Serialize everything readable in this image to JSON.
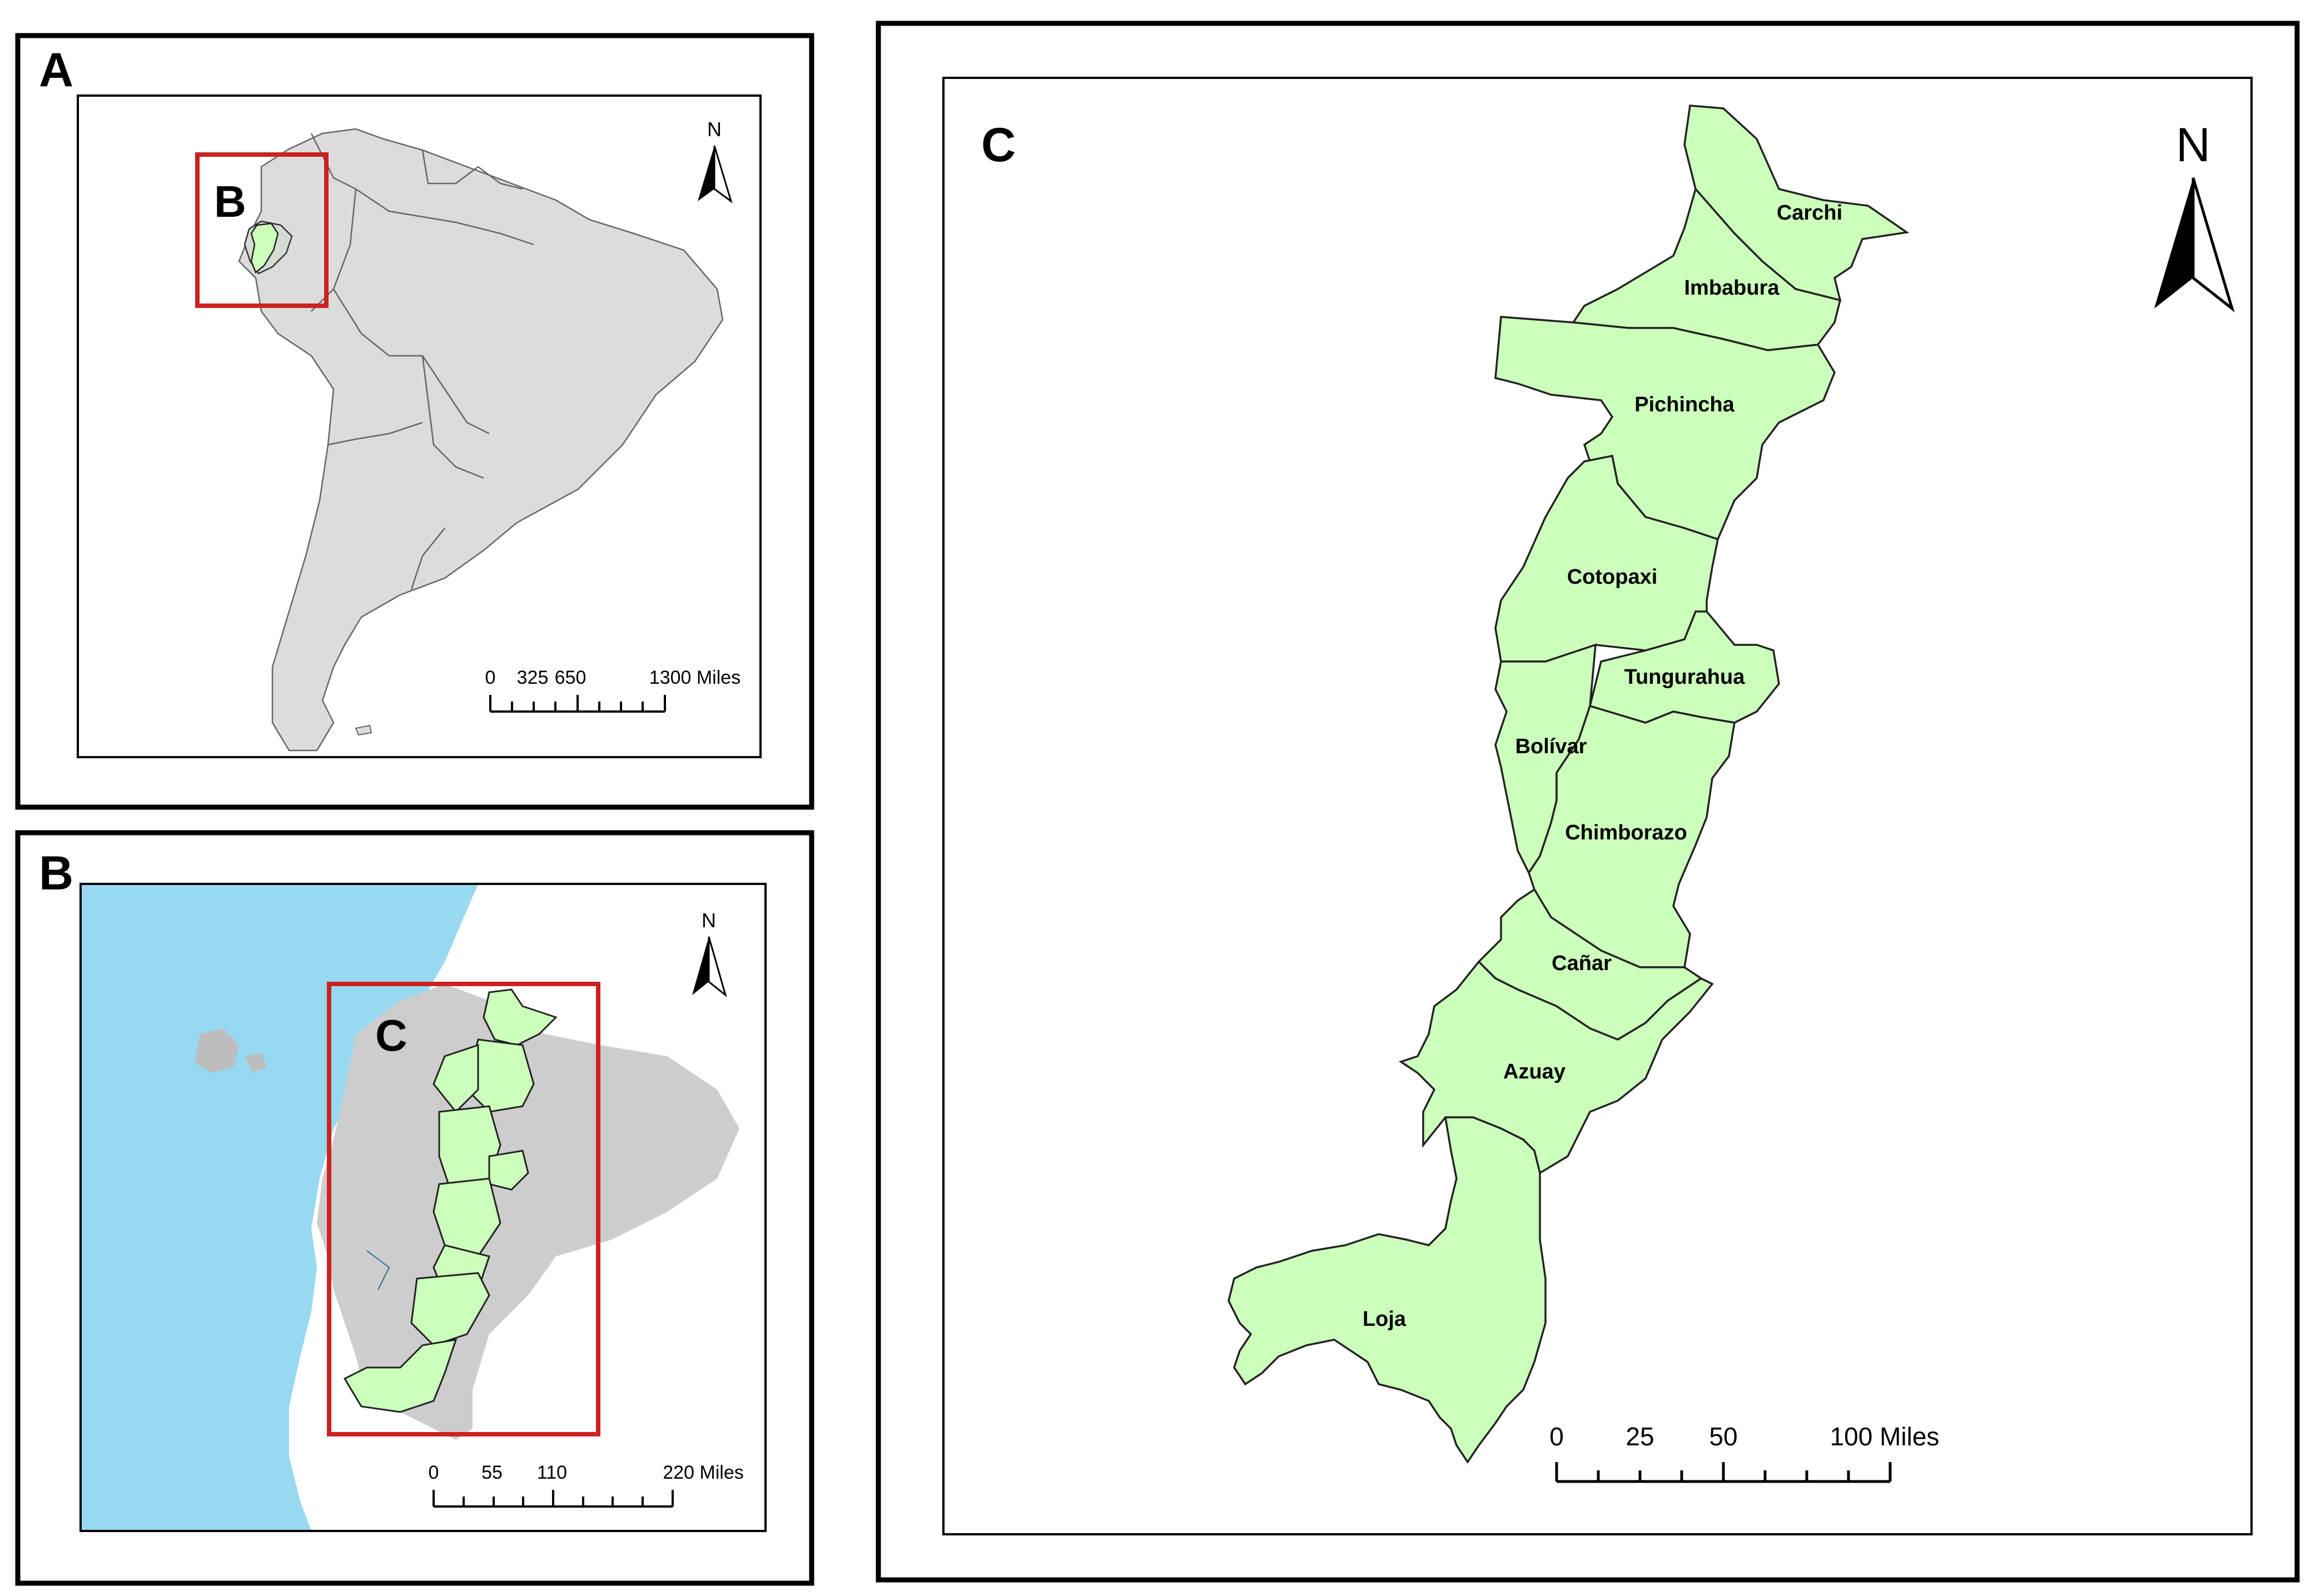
{
  "panels": {
    "a": {
      "letter": "A",
      "inset_letter": "B",
      "north": "N",
      "scale_ticks": [
        "0",
        "325",
        "650",
        "1300 Miles"
      ]
    },
    "b": {
      "letter": "B",
      "inset_letter": "C",
      "north": "N",
      "scale_ticks": [
        "0",
        "55",
        "110",
        "220 Miles"
      ]
    },
    "c": {
      "letter": "C",
      "north": "N",
      "scale_ticks": [
        "0",
        "25",
        "50",
        "100 Miles"
      ],
      "provinces": [
        "Carchi",
        "Imbabura",
        "Pichincha",
        "Cotopaxi",
        "Tungurahua",
        "Bolívar",
        "Chimborazo",
        "Cañar",
        "Azuay",
        "Loja"
      ]
    }
  },
  "colors": {
    "land": "#dcdcdc",
    "ecuador": "#d4dcd4",
    "study_area": "#ccffbb",
    "ocean": "#97d9f0",
    "highlight_box": "#cc2222"
  }
}
